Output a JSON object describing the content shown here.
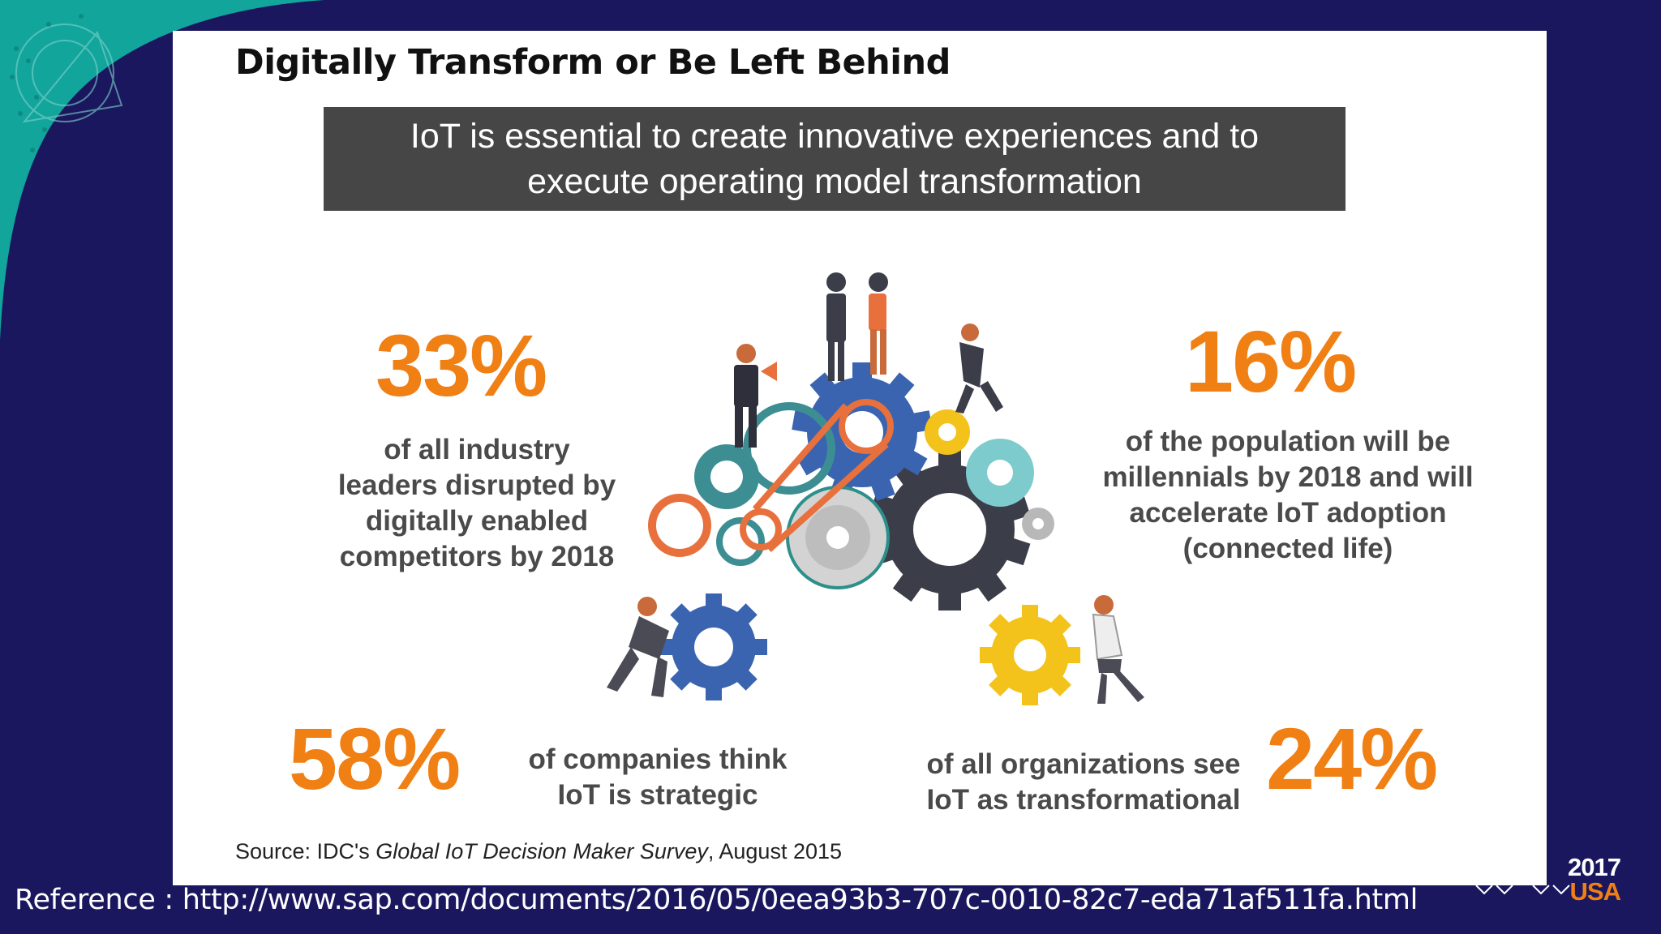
{
  "slide": {
    "title": "Digitally Transform or Be Left Behind",
    "banner_line1": "IoT is essential to create innovative experiences and to",
    "banner_line2": "execute operating model transformation"
  },
  "stats": [
    {
      "value": "33%",
      "lines": [
        "of all industry",
        "leaders disrupted by",
        "digitally enabled",
        "competitors by 2018"
      ]
    },
    {
      "value": "16%",
      "lines": [
        "of the population will be",
        "millennials by 2018 and will",
        "accelerate IoT adoption",
        "(connected life)"
      ]
    },
    {
      "value": "58%",
      "lines": [
        "of companies think",
        "IoT is strategic"
      ]
    },
    {
      "value": "24%",
      "lines": [
        "of all organizations see",
        "IoT as transformational"
      ]
    }
  ],
  "source": {
    "prefix": "Source: IDC's ",
    "survey": "Global IoT Decision Maker Survey",
    "suffix": ", August 2015"
  },
  "footer": {
    "reference": "Reference : http://www.sap.com/documents/2016/05/0eea93b3-707c-0010-82c7-eda71af511fa.html",
    "logo_year": "2017",
    "logo_country": "USA"
  },
  "colors": {
    "background": "#1a175f",
    "teal": "#12a59c",
    "accent": "#f07f14",
    "banner": "#464646"
  }
}
